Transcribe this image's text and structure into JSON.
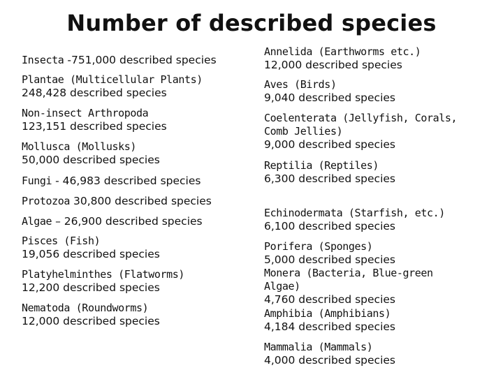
{
  "title": "Number of described species",
  "left": [
    {
      "name": "Insecta",
      "count": "-751,000 described species",
      "layout": "inline"
    },
    {
      "name": "Plantae (Multicellular Plants)",
      "count": "248,428 described species",
      "layout": "block"
    },
    {
      "name": "Non-insect Arthropoda",
      "count": "123,151 described species",
      "layout": "block"
    },
    {
      "name": "Mollusca (Mollusks)",
      "count": "50,000 described species",
      "layout": "block"
    },
    {
      "name": "Fungi",
      "count": "- 46,983 described species",
      "layout": "inline"
    },
    {
      "name": "Protozoa",
      "count": "30,800 described species",
      "layout": "inline"
    },
    {
      "name": "Algae",
      "count": "– 26,900 described species",
      "layout": "inline"
    },
    {
      "name": "Pisces (Fish)",
      "count": "19,056 described species",
      "layout": "block"
    },
    {
      "name": "Platyhelminthes (Flatworms)",
      "count": "12,200 described species",
      "layout": "block"
    },
    {
      "name": "Nematoda (Roundworms)",
      "count": "12,000 described species",
      "layout": "block"
    }
  ],
  "right": [
    {
      "name_lines": [
        "Annelida (Earthworms etc.)"
      ],
      "count": "12,000 described species"
    },
    {
      "name_lines": [
        "Aves (Birds)"
      ],
      "count": "9,040 described species"
    },
    {
      "name_lines": [
        "Coelenterata (Jellyfish, Corals,",
        "Comb Jellies)"
      ],
      "count": "9,000 described species"
    },
    {
      "name_lines": [
        "Reptilia (Reptiles)"
      ],
      "count": "6,300 described species"
    },
    {
      "name_lines": [
        "Echinodermata (Starfish, etc.)"
      ],
      "count": "6,100 described species"
    },
    {
      "name_lines": [
        "Porifera (Sponges)"
      ],
      "count": "5,000 described species"
    },
    {
      "name_lines": [
        "Monera (Bacteria, Blue-green",
        "Algae)"
      ],
      "count": "4,760 described species"
    },
    {
      "name_lines": [
        "Amphibia (Amphibians)"
      ],
      "count": "4,184 described species"
    },
    {
      "name_lines": [
        "Mammalia (Mammals)"
      ],
      "count": "4,000 described species"
    }
  ]
}
